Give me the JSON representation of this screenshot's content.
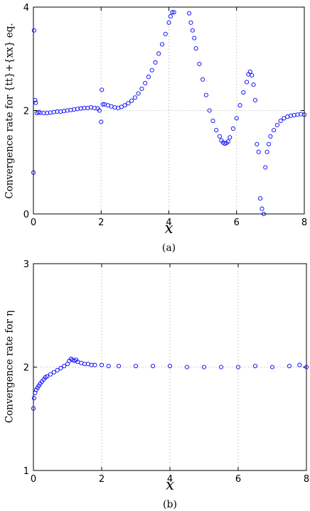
{
  "chart_data": [
    {
      "type": "scatter",
      "panel": "(a)",
      "caption": "(a)",
      "xlabel": "x",
      "ylabel": "Convergence rate for {tt}+{xx} eq.",
      "xlim": [
        0,
        8
      ],
      "ylim": [
        0,
        4
      ],
      "xticks": [
        0,
        2,
        4,
        6,
        8
      ],
      "yticks": [
        0,
        2,
        4
      ],
      "grid": true,
      "marker": "open-circle",
      "color": "#0000ff",
      "x": [
        0.0,
        0.02,
        0.05,
        0.07,
        0.1,
        0.15,
        0.2,
        0.3,
        0.4,
        0.5,
        0.6,
        0.7,
        0.8,
        0.9,
        1.0,
        1.1,
        1.2,
        1.3,
        1.4,
        1.5,
        1.6,
        1.7,
        1.8,
        1.9,
        1.95,
        2.0,
        2.02,
        2.05,
        2.1,
        2.2,
        2.3,
        2.4,
        2.5,
        2.6,
        2.7,
        2.8,
        2.9,
        3.0,
        3.1,
        3.2,
        3.3,
        3.4,
        3.5,
        3.6,
        3.7,
        3.8,
        3.9,
        4.0,
        4.05,
        4.1,
        4.15,
        4.6,
        4.65,
        4.7,
        4.75,
        4.8,
        4.9,
        5.0,
        5.1,
        5.2,
        5.3,
        5.4,
        5.5,
        5.55,
        5.6,
        5.65,
        5.7,
        5.75,
        5.8,
        5.9,
        6.0,
        6.1,
        6.2,
        6.3,
        6.35,
        6.4,
        6.45,
        6.5,
        6.55,
        6.6,
        6.65,
        6.7,
        6.75,
        6.8,
        6.85,
        6.9,
        6.95,
        7.0,
        7.1,
        7.2,
        7.3,
        7.4,
        7.5,
        7.6,
        7.7,
        7.8,
        7.9,
        8.0
      ],
      "y": [
        0.8,
        3.55,
        2.2,
        2.15,
        1.95,
        1.97,
        1.96,
        1.95,
        1.95,
        1.96,
        1.97,
        1.98,
        1.98,
        1.99,
        2.0,
        2.01,
        2.02,
        2.03,
        2.04,
        2.05,
        2.05,
        2.06,
        2.05,
        2.04,
        2.0,
        1.78,
        2.4,
        2.12,
        2.12,
        2.1,
        2.08,
        2.06,
        2.05,
        2.07,
        2.1,
        2.14,
        2.19,
        2.25,
        2.33,
        2.42,
        2.53,
        2.65,
        2.78,
        2.93,
        3.1,
        3.28,
        3.48,
        3.7,
        3.82,
        3.9,
        3.9,
        3.88,
        3.7,
        3.55,
        3.4,
        3.2,
        2.9,
        2.6,
        2.3,
        2.0,
        1.8,
        1.62,
        1.5,
        1.42,
        1.38,
        1.36,
        1.37,
        1.4,
        1.48,
        1.65,
        1.85,
        2.1,
        2.35,
        2.55,
        2.7,
        2.75,
        2.68,
        2.5,
        2.2,
        1.35,
        1.2,
        0.3,
        0.1,
        0.0,
        0.9,
        1.2,
        1.35,
        1.5,
        1.62,
        1.72,
        1.8,
        1.85,
        1.88,
        1.9,
        1.91,
        1.92,
        1.93,
        1.92
      ]
    },
    {
      "type": "scatter",
      "panel": "(b)",
      "caption": "(b)",
      "xlabel": "x",
      "ylabel": "Convergence rate for η",
      "xlim": [
        0,
        8
      ],
      "ylim": [
        1,
        3
      ],
      "xticks": [
        0,
        2,
        4,
        6,
        8
      ],
      "yticks": [
        1,
        2,
        3
      ],
      "grid": true,
      "marker": "open-circle",
      "color": "#0000ff",
      "x": [
        0.0,
        0.02,
        0.05,
        0.08,
        0.12,
        0.16,
        0.2,
        0.25,
        0.3,
        0.35,
        0.4,
        0.5,
        0.6,
        0.7,
        0.8,
        0.9,
        1.0,
        1.05,
        1.1,
        1.15,
        1.2,
        1.25,
        1.3,
        1.4,
        1.5,
        1.6,
        1.7,
        1.8,
        2.0,
        2.2,
        2.5,
        3.0,
        3.5,
        4.0,
        4.5,
        5.0,
        5.5,
        6.0,
        6.5,
        7.0,
        7.5,
        7.8,
        8.0
      ],
      "y": [
        1.6,
        1.7,
        1.75,
        1.78,
        1.8,
        1.82,
        1.84,
        1.86,
        1.88,
        1.9,
        1.91,
        1.93,
        1.95,
        1.97,
        1.99,
        2.01,
        2.03,
        2.06,
        2.08,
        2.07,
        2.06,
        2.07,
        2.05,
        2.04,
        2.03,
        2.03,
        2.02,
        2.02,
        2.02,
        2.01,
        2.01,
        2.01,
        2.01,
        2.01,
        2.0,
        2.0,
        2.0,
        2.0,
        2.01,
        2.0,
        2.01,
        2.02,
        2.0
      ]
    }
  ]
}
